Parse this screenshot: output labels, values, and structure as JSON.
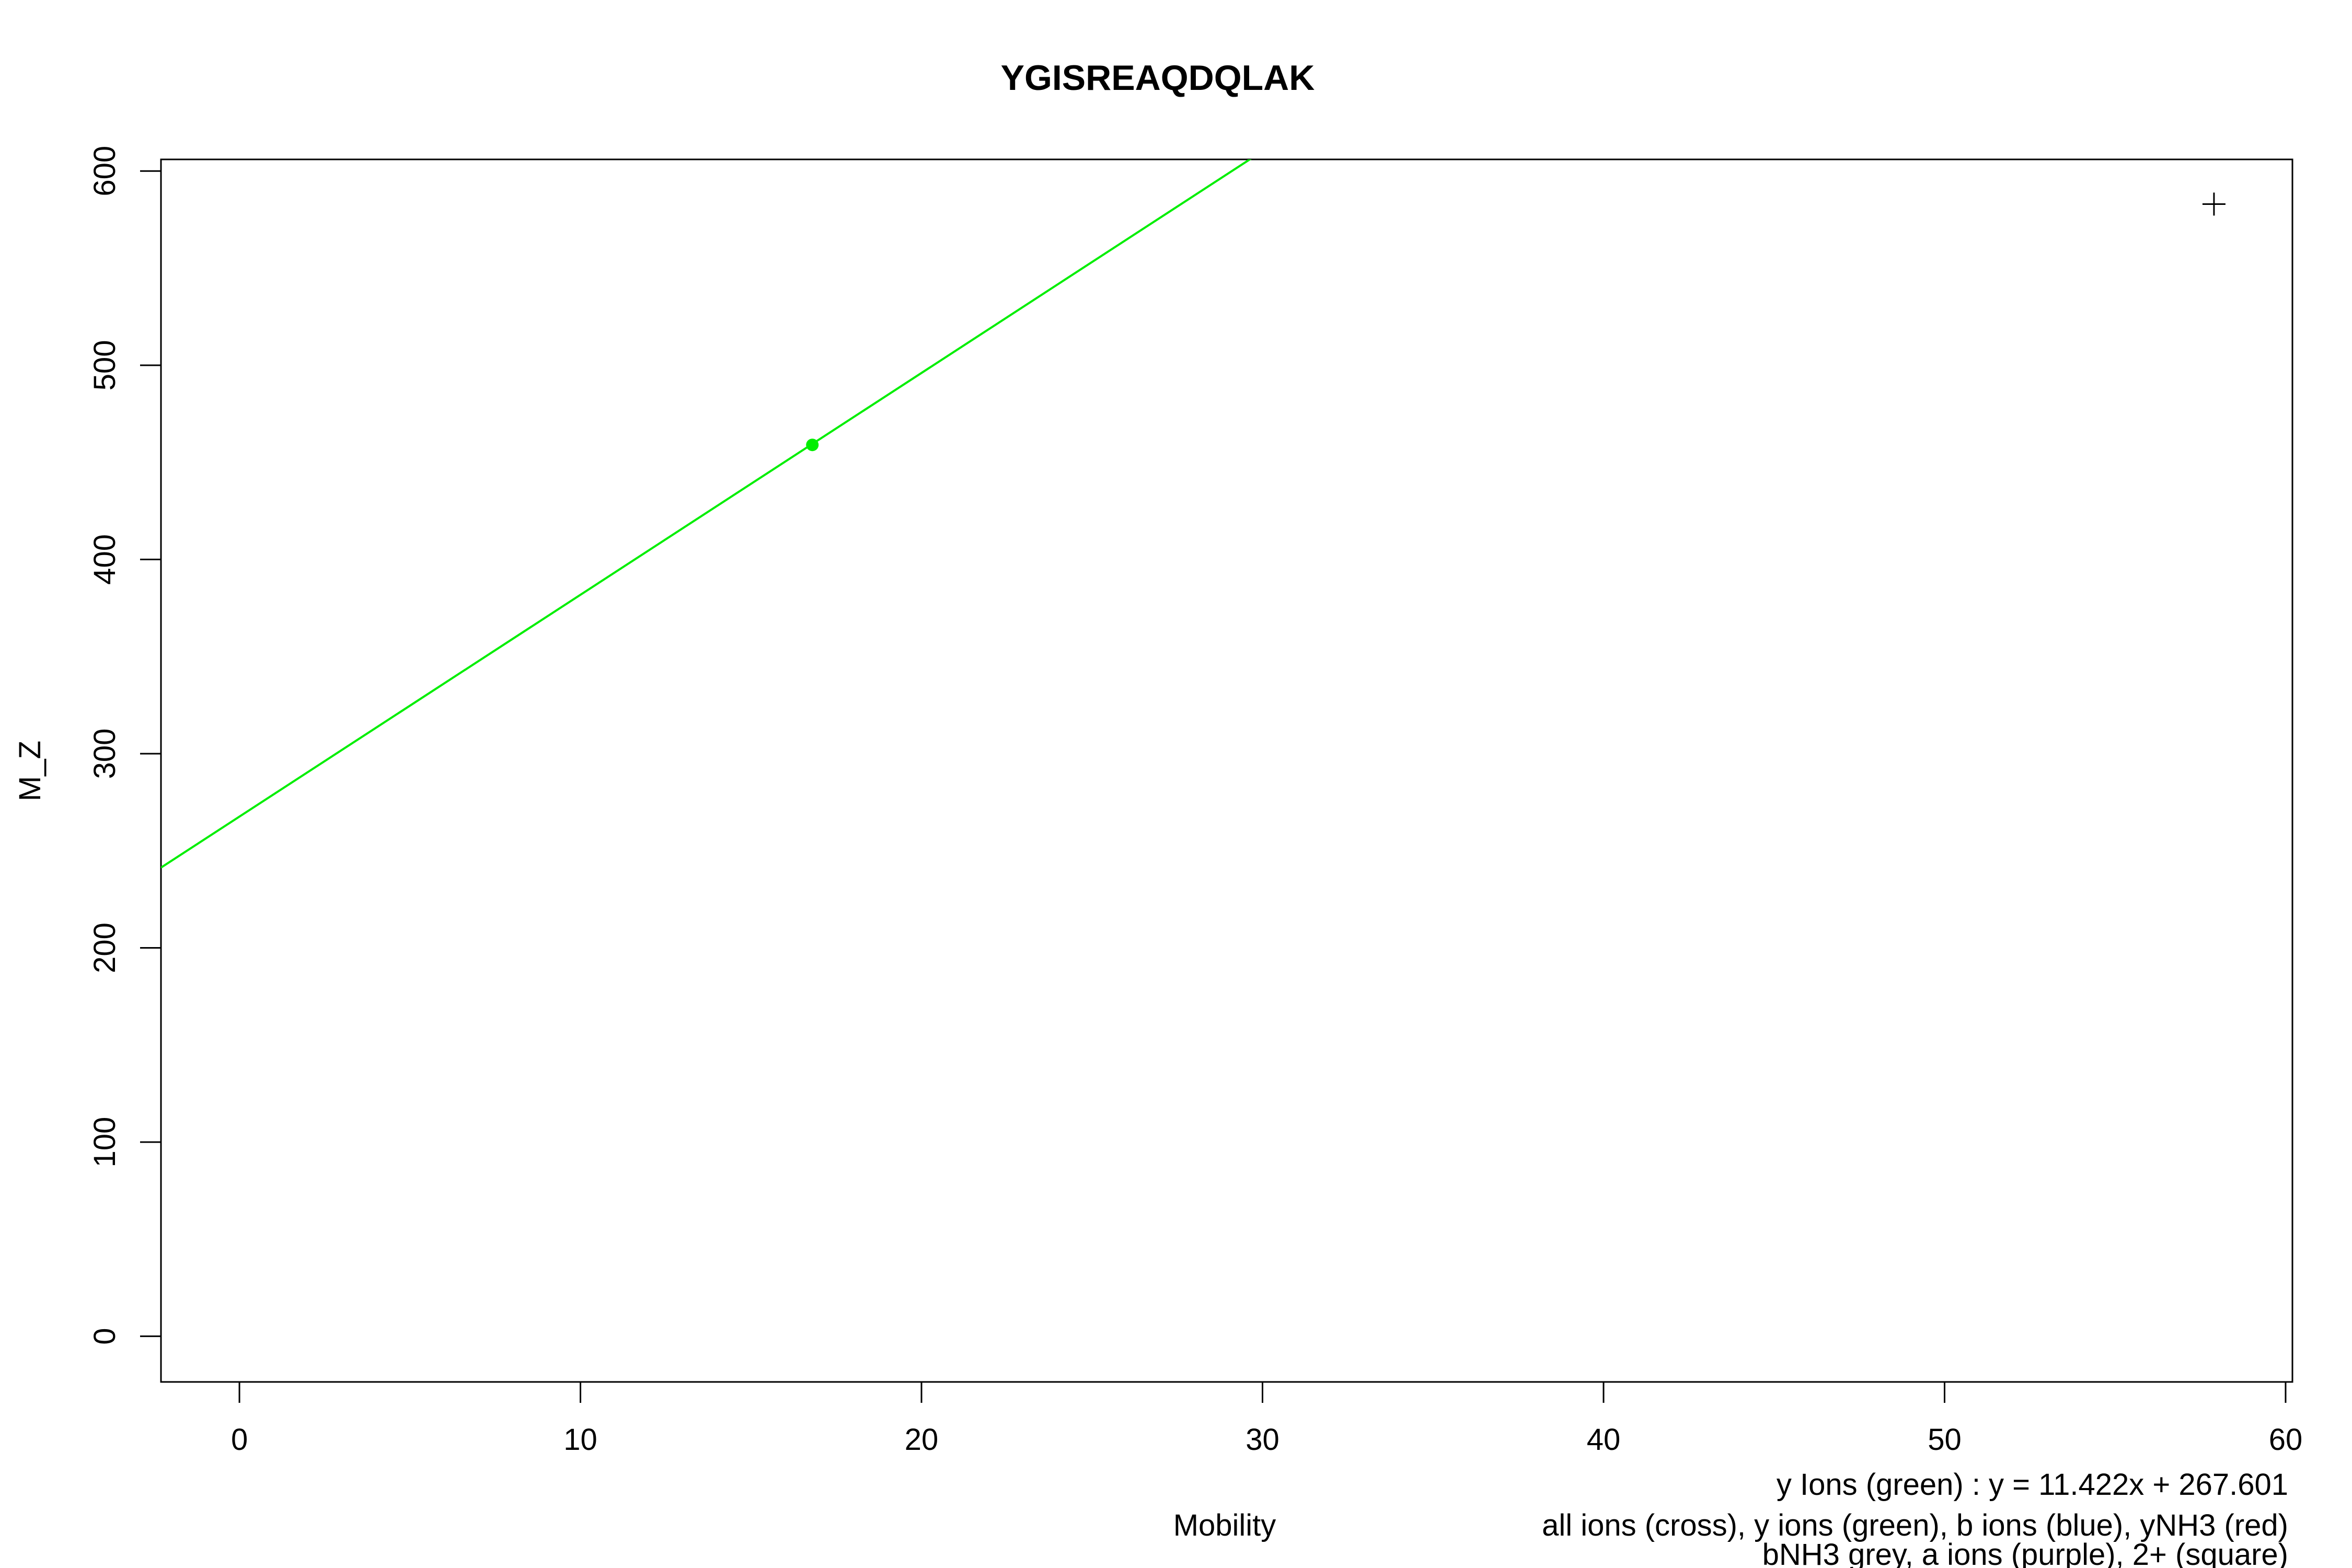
{
  "chart_data": {
    "type": "scatter",
    "title": "YGISREAQDQLAK",
    "xlabel": "Mobility",
    "ylabel": "M_Z",
    "xlim": [
      -2.3,
      60.2
    ],
    "ylim": [
      -23.5,
      606
    ],
    "x_ticks": [
      0,
      10,
      20,
      30,
      40,
      50,
      60
    ],
    "y_ticks": [
      0,
      100,
      200,
      300,
      400,
      500,
      600
    ],
    "grid": false,
    "series": [
      {
        "marker": "cross",
        "color": "#000000",
        "points": [
          {
            "x": 57.9,
            "y": 583
          }
        ]
      },
      {
        "marker": "dot",
        "color": "#00ee00",
        "points": [
          {
            "x": 16.8,
            "y": 459
          }
        ]
      }
    ],
    "fit_line": {
      "color": "#00ee00",
      "slope": 11.422,
      "intercept": 267.601
    },
    "annotations": [
      "y Ions (green) : y = 11.422x + 267.601",
      "all ions (cross), y ions (green), b ions (blue), yNH3 (red)",
      "bNH3 grey, a ions (purple), 2+ (square)"
    ]
  }
}
